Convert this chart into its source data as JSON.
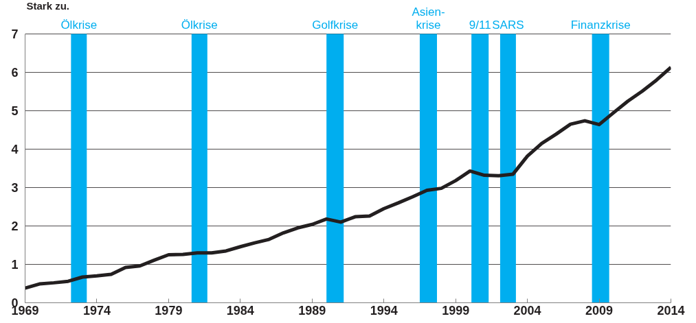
{
  "chart_data": {
    "type": "line",
    "title": "Stark zu.",
    "x": [
      1969,
      1970,
      1971,
      1972,
      1973,
      1974,
      1975,
      1976,
      1977,
      1978,
      1979,
      1980,
      1981,
      1982,
      1983,
      1984,
      1985,
      1986,
      1987,
      1988,
      1989,
      1990,
      1991,
      1992,
      1993,
      1994,
      1995,
      1996,
      1997,
      1998,
      1999,
      2000,
      2001,
      2002,
      2003,
      2004,
      2005,
      2006,
      2007,
      2008,
      2009,
      2010,
      2011,
      2012,
      2013,
      2014
    ],
    "series": [
      {
        "color": "#231f20",
        "values": [
          0.38,
          0.49,
          0.52,
          0.56,
          0.67,
          0.7,
          0.74,
          0.92,
          0.96,
          1.11,
          1.25,
          1.26,
          1.3,
          1.3,
          1.35,
          1.46,
          1.56,
          1.65,
          1.82,
          1.95,
          2.04,
          2.18,
          2.1,
          2.24,
          2.26,
          2.45,
          2.6,
          2.76,
          2.93,
          2.98,
          3.18,
          3.43,
          3.32,
          3.31,
          3.35,
          3.82,
          4.15,
          4.39,
          4.65,
          4.74,
          4.64,
          4.95,
          5.25,
          5.51,
          5.8,
          6.13
        ]
      }
    ],
    "xlim": [
      1969,
      2014
    ],
    "xticks": [
      1969,
      1974,
      1979,
      1984,
      1989,
      1994,
      1999,
      2004,
      2009,
      2014
    ],
    "ylim": [
      0,
      7
    ],
    "yticks": [
      0,
      1,
      2,
      3,
      4,
      5,
      6,
      7
    ],
    "grid": "y",
    "marker": "none",
    "line_style": "solid",
    "bands": [
      {
        "axis": "x",
        "from": 1972.2,
        "to": 1973.3,
        "label": "Ölkrise",
        "color": "#00aeef"
      },
      {
        "axis": "x",
        "from": 1980.6,
        "to": 1981.7,
        "label": "Ölkrise",
        "color": "#00aeef"
      },
      {
        "axis": "x",
        "from": 1990.0,
        "to": 1991.2,
        "label": "Golfkrise",
        "color": "#00aeef"
      },
      {
        "axis": "x",
        "from": 1996.5,
        "to": 1997.7,
        "label": "Asien-\nkrise",
        "color": "#00aeef"
      },
      {
        "axis": "x",
        "from": 2000.1,
        "to": 2001.3,
        "label": "9/11",
        "color": "#00aeef"
      },
      {
        "axis": "x",
        "from": 2002.1,
        "to": 2003.2,
        "label": "SARS",
        "color": "#00aeef"
      },
      {
        "axis": "x",
        "from": 2008.5,
        "to": 2009.7,
        "label": "Finanzkrise",
        "color": "#00aeef"
      }
    ]
  }
}
